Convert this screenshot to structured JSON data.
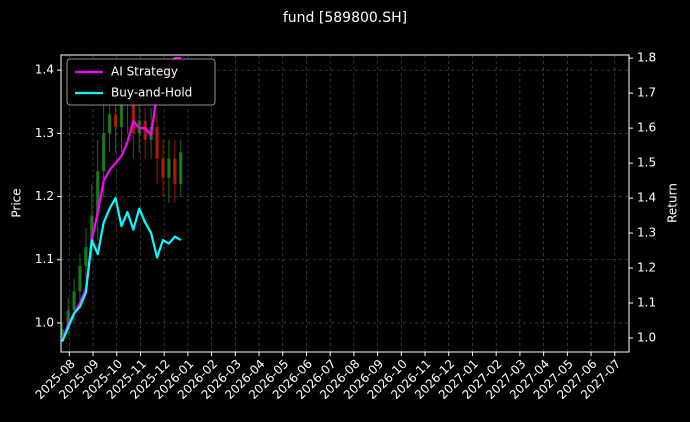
{
  "chart_data": {
    "type": "candlestick",
    "title": "fund [589800.SH]",
    "ylabel": "Price",
    "y2label": "Return",
    "x": [
      -0.3,
      -0.05,
      0.2,
      0.45,
      0.7,
      0.95,
      1.2,
      1.45,
      1.7,
      1.95,
      2.2,
      2.45,
      2.7,
      2.95,
      3.2,
      3.45,
      3.7,
      3.95,
      4.2,
      4.45,
      4.7
    ],
    "open": [
      0.98,
      0.99,
      1.02,
      1.05,
      1.09,
      1.12,
      1.17,
      1.24,
      1.3,
      1.33,
      1.31,
      1.35,
      1.36,
      1.3,
      1.32,
      1.29,
      1.31,
      1.26,
      1.23,
      1.26,
      1.22
    ],
    "high": [
      1.0,
      1.04,
      1.07,
      1.11,
      1.15,
      1.22,
      1.29,
      1.36,
      1.38,
      1.37,
      1.39,
      1.4,
      1.38,
      1.35,
      1.34,
      1.34,
      1.33,
      1.29,
      1.29,
      1.29,
      1.29
    ],
    "low": [
      0.97,
      0.98,
      1.0,
      1.03,
      1.07,
      1.1,
      1.13,
      1.2,
      1.27,
      1.27,
      1.27,
      1.3,
      1.26,
      1.27,
      1.26,
      1.26,
      1.22,
      1.2,
      1.19,
      1.19,
      1.2
    ],
    "close": [
      0.99,
      1.02,
      1.05,
      1.09,
      1.12,
      1.17,
      1.24,
      1.3,
      1.33,
      1.31,
      1.35,
      1.36,
      1.3,
      1.32,
      1.29,
      1.31,
      1.26,
      1.23,
      1.26,
      1.22,
      1.27
    ],
    "up_color": "#1f8a1f",
    "down_color": "#c0200a",
    "series": [
      {
        "name": "AI Strategy",
        "color": "#ff00ff",
        "axis": "y2",
        "values": [
          0.99,
          1.04,
          1.07,
          1.1,
          1.14,
          1.28,
          1.36,
          1.45,
          1.48,
          1.5,
          1.52,
          1.56,
          1.62,
          1.6,
          1.6,
          1.58,
          1.7,
          1.74,
          1.78,
          1.8,
          1.8
        ]
      },
      {
        "name": "Buy-and-Hold",
        "color": "#00ffff",
        "axis": "y2",
        "values": [
          0.99,
          1.03,
          1.07,
          1.09,
          1.13,
          1.28,
          1.24,
          1.33,
          1.37,
          1.4,
          1.32,
          1.36,
          1.31,
          1.37,
          1.33,
          1.3,
          1.23,
          1.28,
          1.27,
          1.29,
          1.28
        ]
      }
    ],
    "xlim": [
      -0.35,
      23.6
    ],
    "xticks": [
      {
        "value": 0,
        "label": "2025-08"
      },
      {
        "value": 1,
        "label": "2025-09"
      },
      {
        "value": 2,
        "label": "2025-10"
      },
      {
        "value": 3,
        "label": "2025-11"
      },
      {
        "value": 4,
        "label": "2025-12"
      },
      {
        "value": 5,
        "label": "2026-01"
      },
      {
        "value": 6,
        "label": "2026-02"
      },
      {
        "value": 7,
        "label": "2026-03"
      },
      {
        "value": 8,
        "label": "2026-04"
      },
      {
        "value": 9,
        "label": "2026-05"
      },
      {
        "value": 10,
        "label": "2026-06"
      },
      {
        "value": 11,
        "label": "2026-07"
      },
      {
        "value": 12,
        "label": "2026-08"
      },
      {
        "value": 13,
        "label": "2026-09"
      },
      {
        "value": 14,
        "label": "2026-10"
      },
      {
        "value": 15,
        "label": "2026-11"
      },
      {
        "value": 16,
        "label": "2026-12"
      },
      {
        "value": 17,
        "label": "2027-01"
      },
      {
        "value": 18,
        "label": "2027-02"
      },
      {
        "value": 19,
        "label": "2027-03"
      },
      {
        "value": 20,
        "label": "2027-04"
      },
      {
        "value": 21,
        "label": "2027-05"
      },
      {
        "value": 22,
        "label": "2027-06"
      },
      {
        "value": 23,
        "label": "2027-07"
      }
    ],
    "ylim": [
      0.954,
      1.424
    ],
    "yticks": [
      {
        "value": 1,
        "label": "1.0"
      },
      1.1,
      1.2,
      1.3,
      1.4
    ],
    "y2lim": [
      0.96,
      1.809
    ],
    "y2ticks": [
      {
        "value": 1,
        "label": "1.0"
      },
      1.1,
      1.2,
      1.3,
      1.4,
      1.5,
      1.6,
      1.7,
      1.8
    ],
    "grid": true,
    "legend": "upper left"
  }
}
